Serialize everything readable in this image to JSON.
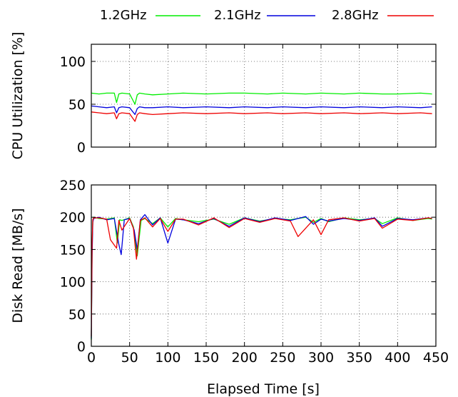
{
  "chart_data": [
    {
      "id": "cpu",
      "type": "line",
      "ylabel": "CPU Utilization [%]",
      "xlabel": "",
      "xlim": [
        0,
        450
      ],
      "ylim": [
        0,
        120
      ],
      "yticks": [
        0,
        50,
        100
      ],
      "xticks": [
        0,
        50,
        100,
        150,
        200,
        250,
        300,
        350,
        400,
        450
      ],
      "show_xtick_labels": false,
      "grid": true,
      "series": [
        {
          "name": "1.2GHz",
          "color": "#00ee00",
          "x": [
            0,
            10,
            20,
            30,
            33,
            36,
            40,
            50,
            57,
            60,
            63,
            70,
            80,
            100,
            120,
            150,
            180,
            200,
            230,
            250,
            280,
            300,
            330,
            350,
            380,
            400,
            430,
            445
          ],
          "y": [
            63,
            62,
            63,
            63,
            52,
            62,
            63,
            62,
            50,
            61,
            63,
            62,
            61,
            62,
            63,
            62,
            63,
            63,
            62,
            63,
            62,
            63,
            62,
            63,
            62,
            62,
            63,
            62
          ]
        },
        {
          "name": "2.1GHz",
          "color": "#0000dd",
          "x": [
            0,
            10,
            20,
            30,
            33,
            36,
            40,
            50,
            57,
            60,
            63,
            70,
            80,
            100,
            120,
            150,
            180,
            200,
            230,
            250,
            280,
            300,
            330,
            350,
            380,
            400,
            430,
            445
          ],
          "y": [
            48,
            47,
            46,
            47,
            40,
            46,
            47,
            46,
            38,
            45,
            47,
            46,
            46,
            47,
            46,
            47,
            46,
            47,
            46,
            47,
            46,
            47,
            46,
            47,
            46,
            47,
            46,
            47
          ]
        },
        {
          "name": "2.8GHz",
          "color": "#ee0000",
          "x": [
            0,
            10,
            20,
            30,
            33,
            36,
            40,
            50,
            57,
            60,
            63,
            70,
            80,
            100,
            120,
            150,
            180,
            200,
            230,
            250,
            280,
            300,
            330,
            350,
            380,
            400,
            430,
            445
          ],
          "y": [
            41,
            40,
            39,
            40,
            33,
            39,
            40,
            39,
            30,
            38,
            40,
            39,
            38,
            39,
            40,
            39,
            40,
            39,
            40,
            39,
            40,
            39,
            40,
            39,
            40,
            39,
            40,
            39
          ]
        }
      ]
    },
    {
      "id": "disk",
      "type": "line",
      "ylabel": "Disk Read [MB/s]",
      "xlabel": "Elapsed Time [s]",
      "xlim": [
        0,
        450
      ],
      "ylim": [
        0,
        250
      ],
      "yticks": [
        0,
        50,
        100,
        150,
        200,
        250
      ],
      "xticks": [
        0,
        50,
        100,
        150,
        200,
        250,
        300,
        350,
        400,
        450
      ],
      "show_xtick_labels": true,
      "grid": true,
      "series": [
        {
          "name": "1.2GHz",
          "color": "#00ee00",
          "x": [
            0,
            1,
            2,
            3,
            10,
            20,
            30,
            34,
            37,
            40,
            50,
            55,
            60,
            65,
            70,
            80,
            90,
            100,
            110,
            120,
            140,
            160,
            180,
            200,
            220,
            240,
            260,
            280,
            290,
            300,
            310,
            330,
            350,
            370,
            380,
            400,
            420,
            440,
            445
          ],
          "y": [
            10,
            150,
            195,
            200,
            198,
            197,
            199,
            160,
            196,
            195,
            199,
            185,
            140,
            195,
            198,
            190,
            199,
            185,
            198,
            196,
            193,
            197,
            189,
            199,
            194,
            198,
            196,
            200,
            192,
            198,
            193,
            199,
            196,
            198,
            190,
            199,
            195,
            198,
            197
          ]
        },
        {
          "name": "2.1GHz",
          "color": "#0000dd",
          "x": [
            0,
            1,
            2,
            3,
            10,
            20,
            30,
            36,
            39,
            43,
            50,
            56,
            60,
            64,
            70,
            80,
            90,
            100,
            110,
            120,
            140,
            160,
            180,
            200,
            220,
            240,
            260,
            280,
            290,
            300,
            310,
            330,
            350,
            370,
            380,
            400,
            420,
            440,
            445
          ],
          "y": [
            12,
            140,
            192,
            198,
            200,
            196,
            198,
            158,
            142,
            196,
            198,
            180,
            150,
            196,
            204,
            188,
            199,
            160,
            197,
            196,
            190,
            198,
            186,
            199,
            193,
            199,
            195,
            201,
            189,
            197,
            194,
            198,
            195,
            199,
            186,
            198,
            196,
            199,
            198
          ]
        },
        {
          "name": "2.8GHz",
          "color": "#ee0000",
          "x": [
            0,
            1,
            2,
            3,
            10,
            20,
            25,
            33,
            36,
            40,
            50,
            55,
            59,
            64,
            70,
            80,
            90,
            100,
            110,
            120,
            140,
            160,
            180,
            200,
            220,
            240,
            260,
            270,
            290,
            300,
            310,
            330,
            350,
            370,
            380,
            400,
            420,
            440,
            445
          ],
          "y": [
            15,
            160,
            196,
            199,
            199,
            197,
            165,
            152,
            195,
            180,
            198,
            183,
            135,
            195,
            199,
            185,
            198,
            178,
            197,
            197,
            188,
            199,
            184,
            198,
            192,
            198,
            194,
            170,
            196,
            173,
            196,
            199,
            194,
            198,
            183,
            197,
            195,
            199,
            198
          ]
        }
      ]
    }
  ]
}
